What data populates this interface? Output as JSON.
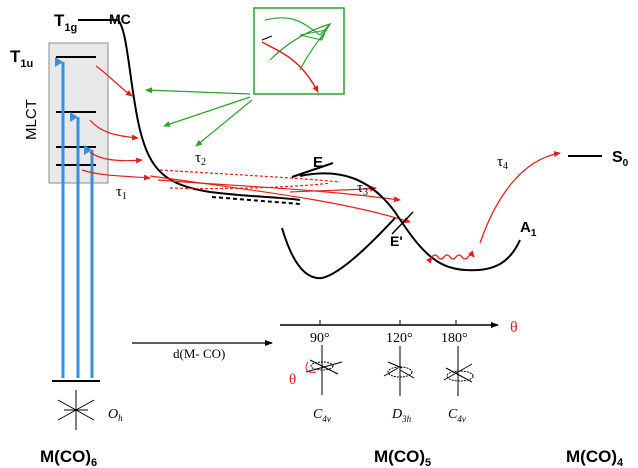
{
  "colors": {
    "excitation": "#3a8fd8",
    "relaxation": "#e02020",
    "inset_green": "#2ea02e",
    "theta_red": "#e02020",
    "ink": "#000000",
    "mlct_box_fill": "#e8e8e8"
  },
  "labels": {
    "t1g": "T",
    "t1g_sub": "1g",
    "mc": "MC",
    "t1u": "T",
    "t1u_sub": "1u",
    "mlct": "MLCT",
    "tau1": "τ",
    "tau1_sub": "1",
    "tau2": "τ",
    "tau2_sub": "2",
    "tau3": "τ",
    "tau3_sub": "3",
    "tau4": "τ",
    "tau4_sub": "4",
    "e": "E",
    "e_prime": "E'",
    "a1": "A",
    "a1_sub": "1",
    "s0": "S",
    "s0_sub": "0",
    "theta_axis": "θ",
    "theta_rot": "θ",
    "tick_90": "90°",
    "tick_120": "120°",
    "tick_180": "180°",
    "d_mco": "d(M- CO)",
    "oh": "O",
    "oh_sub": "h",
    "c4v_a": "C",
    "c4v_a_sub": "4v",
    "d3h": "D",
    "d3h_sub": "3h",
    "c4v_b": "C",
    "c4v_b_sub": "4v",
    "mco6": "M(CO)",
    "mco6_sub": "6",
    "mco5": "M(CO)",
    "mco5_sub": "5",
    "mco4": "M(CO)",
    "mco4_sub": "4"
  }
}
